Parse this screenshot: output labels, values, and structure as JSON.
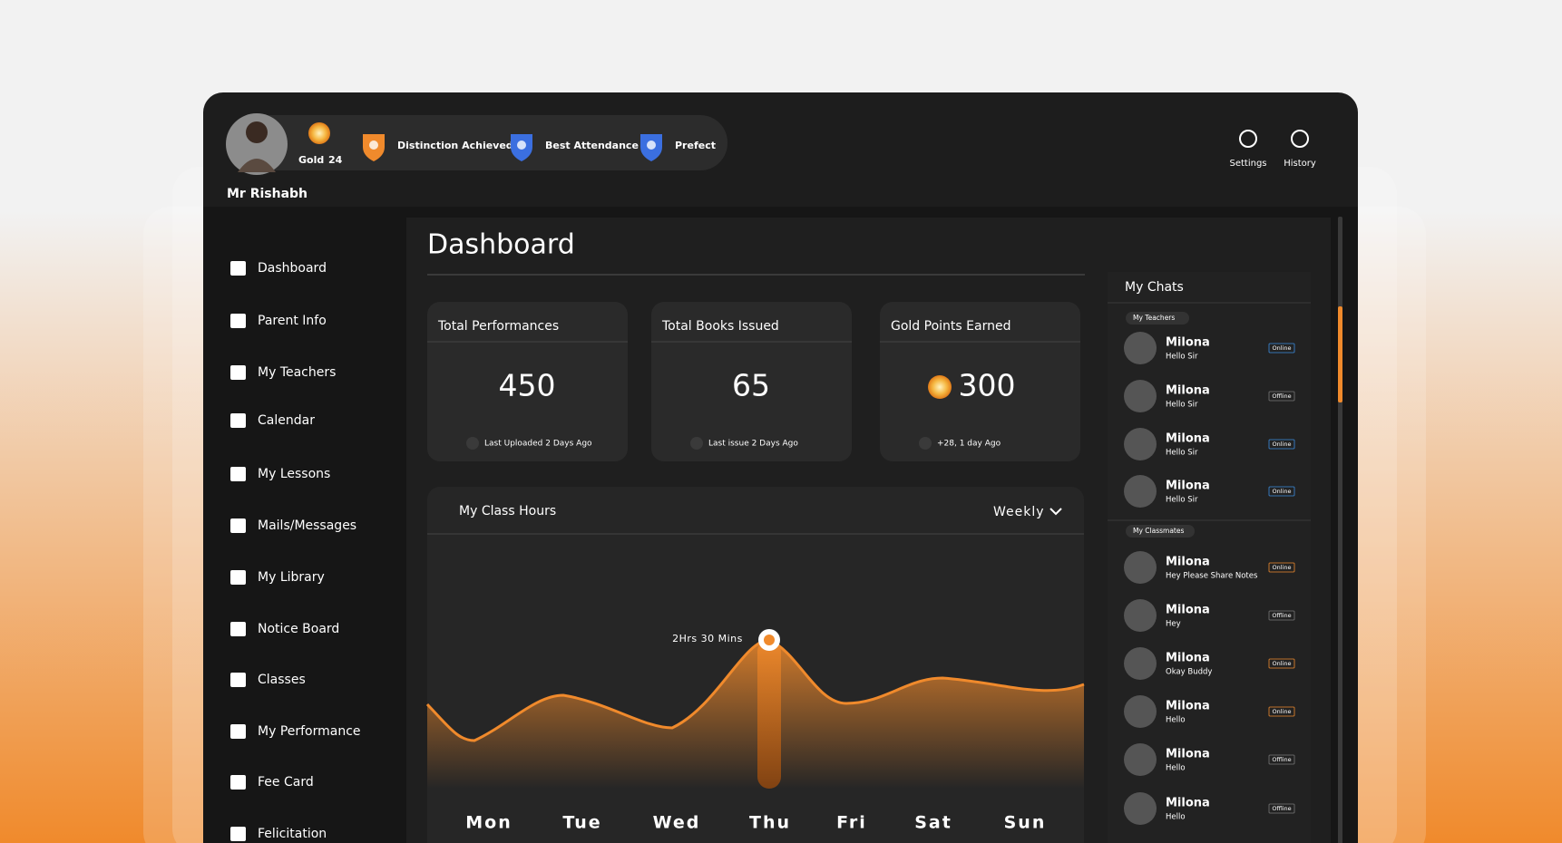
{
  "header": {
    "user_name": "Mr Rishabh",
    "badge": "Gold",
    "points": "24",
    "achievements": [
      "Distinction Achieved",
      "Best Attendance",
      "Prefect"
    ],
    "actions": [
      "Settings",
      "History"
    ]
  },
  "sidebar": {
    "items": [
      "Dashboard",
      "Parent Info",
      "My Teachers",
      "Calendar",
      "My Lessons",
      "Mails/Messages",
      "My Library",
      "Notice Board",
      "Classes",
      "My Performance",
      "Fee Card",
      "Felicitation"
    ]
  },
  "dashboard": {
    "title": "Dashboard",
    "stats": [
      {
        "title": "Total Performances",
        "value": "450",
        "note": "Last Uploaded 2 Days Ago"
      },
      {
        "title": "Total Books Issued",
        "value": "65",
        "note": "Last issue 2 Days Ago"
      },
      {
        "title": "Gold Points Earned",
        "value": "300",
        "note": "+28, 1 day Ago"
      }
    ],
    "class_hours": {
      "title": "My Class Hours",
      "period": "Weekly",
      "days": [
        "Mon",
        "Tue",
        "Wed",
        "Thu",
        "Fri",
        "Sat",
        "Sun"
      ],
      "annotation": "2Hrs 30 Mins"
    }
  },
  "chats": {
    "title": "My Chats",
    "groups": [
      {
        "label": "My Teachers",
        "contacts": [
          {
            "name": "Milona",
            "message": "Hello Sir",
            "status": "Online"
          },
          {
            "name": "Milona",
            "message": "Hello Sir",
            "status": "Offline"
          },
          {
            "name": "Milona",
            "message": "Hello Sir",
            "status": "Online"
          },
          {
            "name": "Milona",
            "message": "Hello Sir",
            "status": "Online"
          }
        ]
      },
      {
        "label": "My Classmates",
        "contacts": [
          {
            "name": "Milona",
            "message": "Hey Please Share Notes",
            "status": "Online"
          },
          {
            "name": "Milona",
            "message": "Hey",
            "status": "Offline"
          },
          {
            "name": "Milona",
            "message": "Okay Buddy",
            "status": "Online"
          },
          {
            "name": "Milona",
            "message": "Hello",
            "status": "Online"
          },
          {
            "name": "Milona",
            "message": "Hello",
            "status": "Offline"
          },
          {
            "name": "Milona",
            "message": "Hello",
            "status": "Offline"
          }
        ]
      }
    ]
  }
}
